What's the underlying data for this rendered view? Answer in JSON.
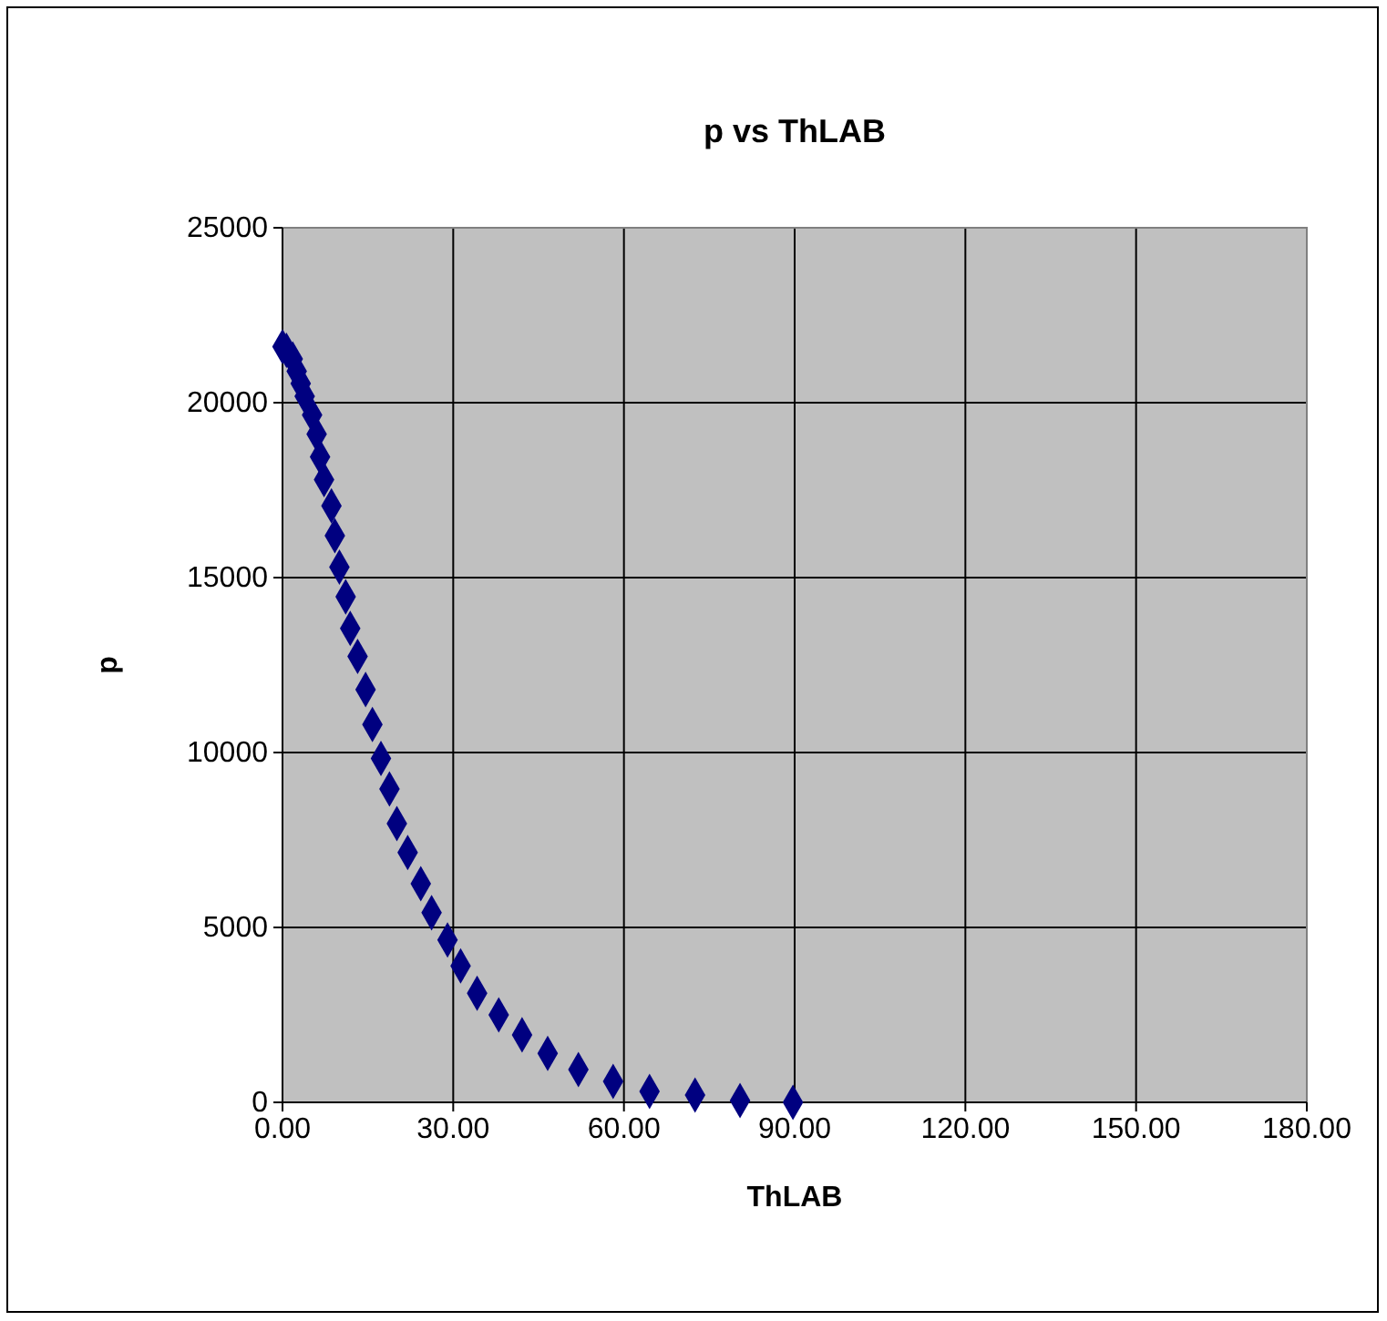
{
  "chart_data": {
    "type": "scatter",
    "title": "p vs ThLAB",
    "xlabel": "ThLAB",
    "ylabel": "p",
    "x": [
      0,
      0.7,
      1.8,
      2.5,
      3.2,
      3.9,
      5.2,
      6.0,
      6.6,
      7.3,
      8.6,
      9.2,
      10.0,
      11.1,
      11.9,
      13.2,
      14.6,
      15.8,
      17.3,
      18.8,
      20.1,
      22.0,
      24.3,
      26.2,
      29.0,
      31.3,
      34.2,
      38.0,
      42.1,
      46.6,
      52.0,
      58.1,
      64.5,
      72.5,
      80.4,
      89.7
    ],
    "series": [
      {
        "color": "#000080",
        "values": [
          21600,
          21500,
          21250,
          20900,
          20550,
          20180,
          19650,
          19100,
          18450,
          17800,
          17050,
          16200,
          15300,
          14450,
          13550,
          12750,
          11800,
          10800,
          9830,
          8960,
          7970,
          7140,
          6250,
          5420,
          4640,
          3900,
          3120,
          2500,
          1930,
          1400,
          940,
          600,
          310,
          210,
          50,
          0
        ]
      }
    ],
    "xlim": [
      0,
      180
    ],
    "xticks": [
      {
        "value": 0,
        "label": "0.00"
      },
      {
        "value": 30,
        "label": "30.00"
      },
      {
        "value": 60,
        "label": "60.00"
      },
      {
        "value": 90,
        "label": "90.00"
      },
      {
        "value": 120,
        "label": "120.00"
      },
      {
        "value": 150,
        "label": "150.00"
      },
      {
        "value": 180,
        "label": "180.00"
      }
    ],
    "ylim": [
      0,
      25000
    ],
    "yticks": [
      0,
      5000,
      10000,
      15000,
      20000,
      25000
    ],
    "grid": true,
    "marker": "diamond"
  }
}
